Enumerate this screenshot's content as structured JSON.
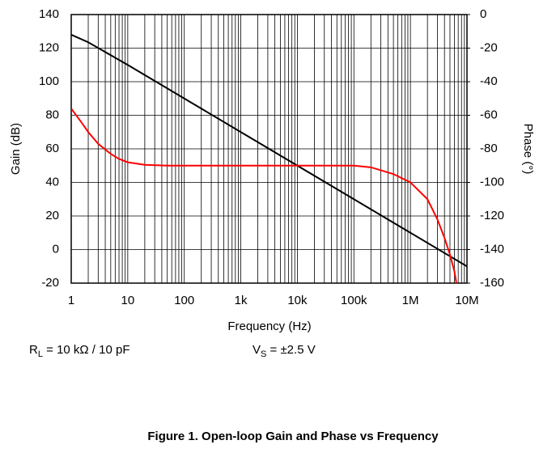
{
  "chart_data": {
    "type": "line",
    "xlabel": "Frequency (Hz)",
    "ylabel": "Gain (dB)",
    "y2label": "Phase (°)",
    "xscale": "log",
    "grid": true,
    "xlim": [
      1,
      10000000
    ],
    "xticks": [
      1,
      10,
      100,
      {
        "value": 1000,
        "label": "1k"
      },
      {
        "value": 10000,
        "label": "10k"
      },
      {
        "value": 100000,
        "label": "100k"
      },
      {
        "value": 1000000,
        "label": "1M"
      },
      {
        "value": 10000000,
        "label": "10M"
      }
    ],
    "ylim": [
      -20,
      140
    ],
    "yticks": [
      -20,
      0,
      20,
      40,
      60,
      80,
      100,
      120,
      140
    ],
    "y2lim": [
      -160,
      0
    ],
    "y2ticks": [
      0,
      -20,
      -40,
      -60,
      -80,
      -100,
      -120,
      -140,
      -160
    ],
    "series": [
      {
        "color": "#000000",
        "axis": "y",
        "x": [
          1,
          2,
          10,
          100,
          1000,
          10000,
          100000,
          1000000,
          10000000
        ],
        "values": [
          128,
          123.5,
          110,
          90,
          70,
          50,
          30,
          10,
          -10
        ]
      },
      {
        "color": "#ff0000",
        "axis": "y2",
        "x": [
          1,
          1.5,
          2,
          3,
          5,
          7,
          10,
          20,
          50,
          100,
          1000,
          10000,
          100000,
          200000,
          500000,
          1000000,
          2000000,
          3000000,
          4000000,
          5000000,
          6000000,
          6500000
        ],
        "values": [
          -56,
          -64,
          -70,
          -77,
          -83,
          -86,
          -88,
          -89.5,
          -90,
          -90,
          -90,
          -90,
          -90,
          -91,
          -95,
          -100,
          -110,
          -122,
          -133,
          -143,
          -153,
          -160
        ]
      }
    ],
    "annotations": [
      [
        "R",
        "L",
        " = 10 kΩ / 10 pF"
      ],
      [
        "V",
        "S",
        " = ±2.5 V"
      ]
    ],
    "caption": "Figure 1. Open-loop Gain and Phase vs Frequency"
  }
}
